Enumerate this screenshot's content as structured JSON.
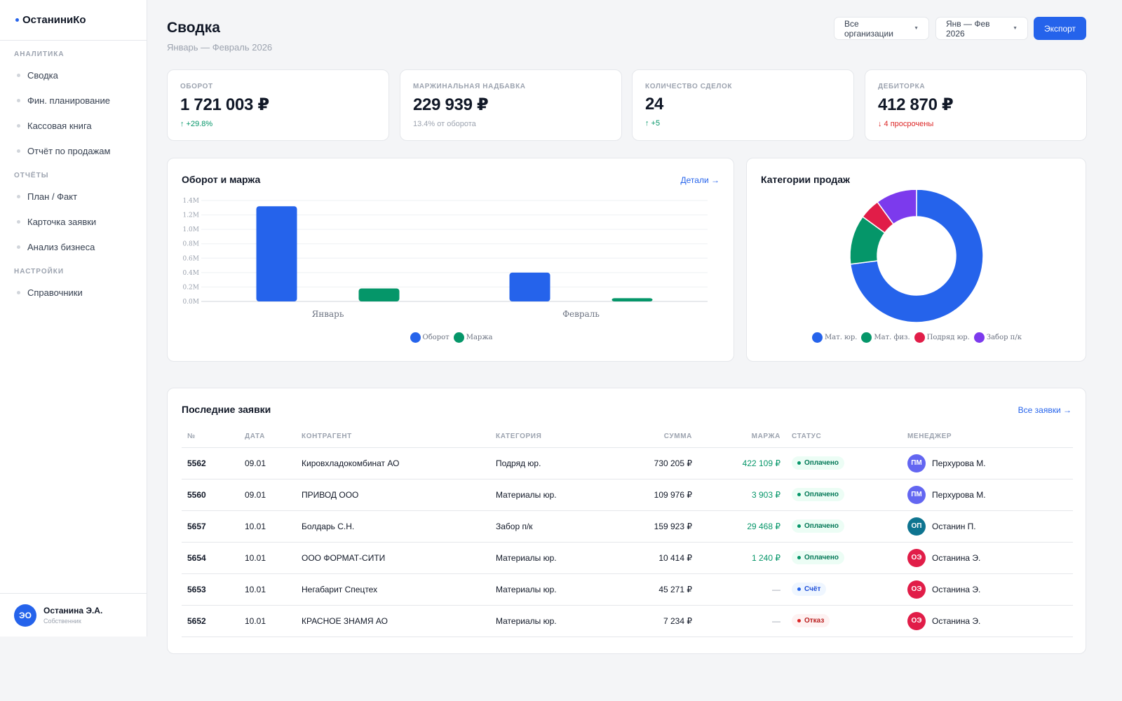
{
  "sidebar": {
    "brand": "ОстаниниКо",
    "sections": [
      {
        "title": "Аналитика",
        "items": [
          "Сводка",
          "Фин. планирование",
          "Кассовая книга",
          "Отчёт по продажам"
        ]
      },
      {
        "title": "Отчёты",
        "items": [
          "План / Факт",
          "Карточка заявки",
          "Анализ бизнеса"
        ]
      },
      {
        "title": "Настройки",
        "items": [
          "Справочники"
        ]
      }
    ],
    "user": {
      "initials": "ЭО",
      "name": "Останина Э.А.",
      "role": "Собственник"
    }
  },
  "header": {
    "title": "Сводка",
    "subtitle": "Январь — Февраль 2026",
    "org_select": "Все организации",
    "period_select": "Янв — Фев 2026",
    "export_label": "Экспорт"
  },
  "kpis": [
    {
      "label": "Оборот",
      "value": "1 721 003 ₽",
      "delta": "↑ +29.8%",
      "tone": "up"
    },
    {
      "label": "Маржинальная надбавка",
      "value": "229 939 ₽",
      "delta": "13.4% от оборота",
      "tone": "muted"
    },
    {
      "label": "Количество сделок",
      "value": "24",
      "delta": "↑ +5",
      "tone": "up"
    },
    {
      "label": "Дебиторка",
      "value": "412 870 ₽",
      "delta": "↓ 4 просрочены",
      "tone": "down"
    }
  ],
  "bar_panel": {
    "title": "Оборот и маржа",
    "link": "Детали →"
  },
  "pie_panel": {
    "title": "Категории продаж"
  },
  "colors": {
    "blue": "#2563eb",
    "green": "#059669",
    "red": "#e11d48",
    "purple": "#7c3aed"
  },
  "chart_data": [
    {
      "type": "bar",
      "categories": [
        "Январь",
        "Февраль"
      ],
      "series": [
        {
          "name": "Оборот",
          "values": [
            1320000,
            400000
          ],
          "color": "#2563eb"
        },
        {
          "name": "Маржа",
          "values": [
            180000,
            45000
          ],
          "color": "#059669"
        }
      ],
      "yticks": [
        "0.0M",
        "0.2M",
        "0.4M",
        "0.6M",
        "0.8M",
        "1.0M",
        "1.2M",
        "1.4M"
      ],
      "ylim": [
        0,
        1400000
      ],
      "legend": "bottom",
      "grid": true
    },
    {
      "type": "pie",
      "donut": true,
      "labels": [
        "Мат. юр.",
        "Мат. физ.",
        "Подряд юр.",
        "Забор п/к"
      ],
      "values": [
        73,
        12,
        5,
        10
      ],
      "colors": [
        "#2563eb",
        "#059669",
        "#e11d48",
        "#7c3aed"
      ],
      "legend": "bottom"
    }
  ],
  "table": {
    "title": "Последние заявки",
    "link": "Все заявки →",
    "columns": [
      "№",
      "Дата",
      "Контрагент",
      "Категория",
      "Сумма",
      "Маржа",
      "Статус",
      "Менеджер"
    ],
    "rows": [
      {
        "no": "5562",
        "date": "09.01",
        "client": "Кировхладокомбинат АО",
        "cat": "Подряд юр.",
        "sum": "730 205 ₽",
        "margin": "422 109 ₽",
        "status": "Оплачено",
        "st": "paid",
        "mgr_initials": "ПМ",
        "mgr": "Перхурова М.",
        "mgr_color": "#6366f1"
      },
      {
        "no": "5560",
        "date": "09.01",
        "client": "ПРИВОД ООО",
        "cat": "Материалы юр.",
        "sum": "109 976 ₽",
        "margin": "3 903 ₽",
        "status": "Оплачено",
        "st": "paid",
        "mgr_initials": "ПМ",
        "mgr": "Перхурова М.",
        "mgr_color": "#6366f1"
      },
      {
        "no": "5657",
        "date": "10.01",
        "client": "Болдарь С.Н.",
        "cat": "Забор п/к",
        "sum": "159 923 ₽",
        "margin": "29 468 ₽",
        "status": "Оплачено",
        "st": "paid",
        "mgr_initials": "ОП",
        "mgr": "Останин П.",
        "mgr_color": "#0e7490"
      },
      {
        "no": "5654",
        "date": "10.01",
        "client": "ООО ФОРМАТ-СИТИ",
        "cat": "Материалы юр.",
        "sum": "10 414 ₽",
        "margin": "1 240 ₽",
        "status": "Оплачено",
        "st": "paid",
        "mgr_initials": "ОЭ",
        "mgr": "Останина Э.",
        "mgr_color": "#e11d48"
      },
      {
        "no": "5653",
        "date": "10.01",
        "client": "Негабарит Спецтех",
        "cat": "Материалы юр.",
        "sum": "45 271 ₽",
        "margin": "—",
        "status": "Счёт",
        "st": "invoice",
        "mgr_initials": "ОЭ",
        "mgr": "Останина Э.",
        "mgr_color": "#e11d48"
      },
      {
        "no": "5652",
        "date": "10.01",
        "client": "КРАСНОЕ ЗНАМЯ АО",
        "cat": "Материалы юр.",
        "sum": "7 234 ₽",
        "margin": "—",
        "status": "Отказ",
        "st": "reject",
        "mgr_initials": "ОЭ",
        "mgr": "Останина Э.",
        "mgr_color": "#e11d48"
      }
    ]
  }
}
